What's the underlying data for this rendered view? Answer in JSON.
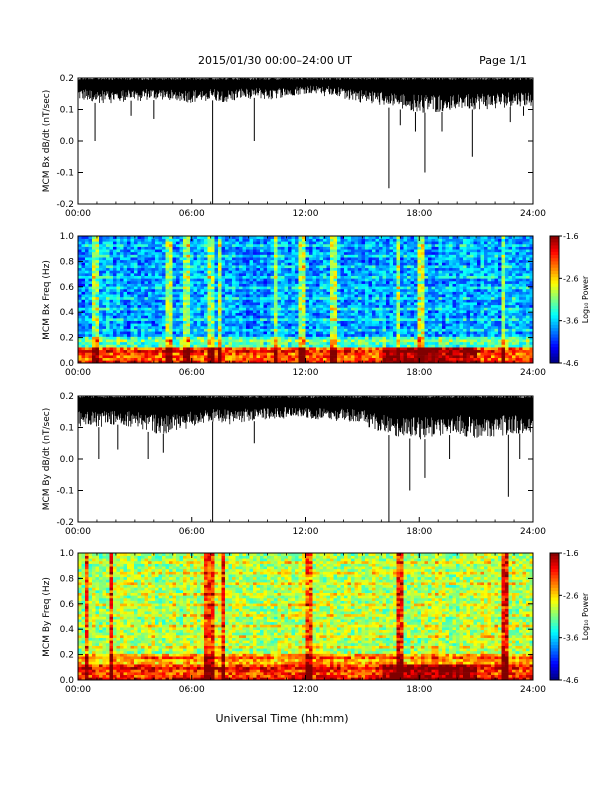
{
  "header": {
    "title": "2015/01/30  00:00–24:00 UT",
    "page": "Page 1/1"
  },
  "xlabel": "Universal Time (hh:mm)",
  "colors": {
    "trace": "#000000",
    "frame": "#000000"
  },
  "chart_data": [
    {
      "type": "line",
      "ylabel": "MCM Bx dB/dt (nT/sec)",
      "xlim": [
        0,
        24
      ],
      "ylim": [
        -0.2,
        0.2
      ],
      "xticks": [
        "00:00",
        "06:00",
        "12:00",
        "18:00",
        "24:00"
      ],
      "yticks": [
        "0.2",
        "0.1",
        "0.0",
        "-0.1",
        "-0.2"
      ],
      "envelope": {
        "x": [
          0,
          1,
          2,
          3,
          4,
          5,
          6,
          7,
          8,
          9,
          10,
          11,
          12,
          13,
          14,
          15,
          16,
          17,
          18,
          19,
          20,
          21,
          22,
          23,
          24
        ],
        "upper": [
          0.2,
          0.2,
          0.2,
          0.2,
          0.2,
          0.2,
          0.2,
          0.2,
          0.2,
          0.2,
          0.2,
          0.2,
          0.2,
          0.2,
          0.2,
          0.2,
          0.2,
          0.2,
          0.2,
          0.2,
          0.2,
          0.2,
          0.2,
          0.2,
          0.2
        ],
        "lower": [
          0.13,
          0.12,
          0.12,
          0.13,
          0.13,
          0.13,
          0.12,
          0.13,
          0.12,
          0.14,
          0.13,
          0.14,
          0.15,
          0.15,
          0.14,
          0.12,
          0.11,
          0.1,
          0.09,
          0.09,
          0.1,
          0.1,
          0.1,
          0.11,
          0.11
        ]
      },
      "spikes": [
        {
          "x": 0.9,
          "y": 0.0
        },
        {
          "x": 2.8,
          "y": 0.08
        },
        {
          "x": 4.0,
          "y": 0.07
        },
        {
          "x": 7.1,
          "y": -0.2
        },
        {
          "x": 9.3,
          "y": 0.0
        },
        {
          "x": 16.4,
          "y": -0.15
        },
        {
          "x": 17.0,
          "y": 0.05
        },
        {
          "x": 17.8,
          "y": 0.03
        },
        {
          "x": 18.3,
          "y": -0.1
        },
        {
          "x": 19.2,
          "y": 0.03
        },
        {
          "x": 20.8,
          "y": -0.05
        },
        {
          "x": 22.8,
          "y": 0.06
        },
        {
          "x": 23.5,
          "y": 0.08
        }
      ]
    },
    {
      "type": "heatmap",
      "ylabel": "MCM Bx Freq (Hz)",
      "xlim": [
        0,
        24
      ],
      "ylim": [
        0,
        1
      ],
      "xticks": [
        "00:00",
        "06:00",
        "12:00",
        "18:00",
        "24:00"
      ],
      "yticks": [
        "1.0",
        "0.8",
        "0.6",
        "0.4",
        "0.2",
        "0.0"
      ],
      "colorbar": {
        "label": "Log₁₀ Power",
        "ticks": [
          "-1.6",
          "-2.6",
          "-3.6",
          "-4.6"
        ],
        "range": [
          -4.6,
          -1.6
        ]
      },
      "background_level": -3.9,
      "low_freq_level": -2.4,
      "bright_times": [
        0.9,
        4.8,
        5.7,
        7.0,
        7.5,
        10.4,
        11.8,
        13.5,
        16.9,
        18.1,
        22.4
      ]
    },
    {
      "type": "line",
      "ylabel": "MCM By dB/dt (nT/sec)",
      "xlim": [
        0,
        24
      ],
      "ylim": [
        -0.2,
        0.2
      ],
      "xticks": [
        "00:00",
        "06:00",
        "12:00",
        "18:00",
        "24:00"
      ],
      "yticks": [
        "0.2",
        "0.1",
        "0.0",
        "-0.1",
        "-0.2"
      ],
      "envelope": {
        "x": [
          0,
          1,
          2,
          3,
          4,
          5,
          6,
          7,
          8,
          9,
          10,
          11,
          12,
          13,
          14,
          15,
          16,
          17,
          18,
          19,
          20,
          21,
          22,
          23,
          24
        ],
        "upper": [
          0.2,
          0.2,
          0.2,
          0.2,
          0.2,
          0.2,
          0.2,
          0.2,
          0.2,
          0.2,
          0.2,
          0.2,
          0.2,
          0.2,
          0.2,
          0.2,
          0.2,
          0.2,
          0.2,
          0.2,
          0.2,
          0.2,
          0.2,
          0.2,
          0.2
        ],
        "lower": [
          0.1,
          0.1,
          0.11,
          0.1,
          0.08,
          0.08,
          0.1,
          0.12,
          0.11,
          0.12,
          0.12,
          0.13,
          0.13,
          0.12,
          0.12,
          0.11,
          0.08,
          0.07,
          0.06,
          0.07,
          0.08,
          0.06,
          0.07,
          0.08,
          0.08
        ]
      },
      "spikes": [
        {
          "x": 1.1,
          "y": 0.0
        },
        {
          "x": 2.1,
          "y": 0.03
        },
        {
          "x": 3.7,
          "y": 0.0
        },
        {
          "x": 4.5,
          "y": 0.02
        },
        {
          "x": 7.1,
          "y": -0.2
        },
        {
          "x": 9.3,
          "y": 0.05
        },
        {
          "x": 16.4,
          "y": -0.2
        },
        {
          "x": 17.5,
          "y": -0.1
        },
        {
          "x": 18.3,
          "y": -0.06
        },
        {
          "x": 19.6,
          "y": 0.0
        },
        {
          "x": 22.7,
          "y": -0.12
        },
        {
          "x": 23.3,
          "y": 0.0
        }
      ]
    },
    {
      "type": "heatmap",
      "ylabel": "MCM By Freq (Hz)",
      "xlim": [
        0,
        24
      ],
      "ylim": [
        0,
        1
      ],
      "xticks": [
        "00:00",
        "06:00",
        "12:00",
        "18:00",
        "24:00"
      ],
      "yticks": [
        "1.0",
        "0.8",
        "0.6",
        "0.4",
        "0.2",
        "0.0"
      ],
      "colorbar": {
        "label": "Log₁₀ Power",
        "ticks": [
          "-1.6",
          "-2.6",
          "-3.6",
          "-4.6"
        ],
        "range": [
          -4.6,
          -1.6
        ]
      },
      "background_level": -3.1,
      "low_freq_level": -2.3,
      "bright_times": [
        0.5,
        1.8,
        6.8,
        7.0,
        7.6,
        12.2,
        17.0,
        22.5
      ]
    }
  ]
}
